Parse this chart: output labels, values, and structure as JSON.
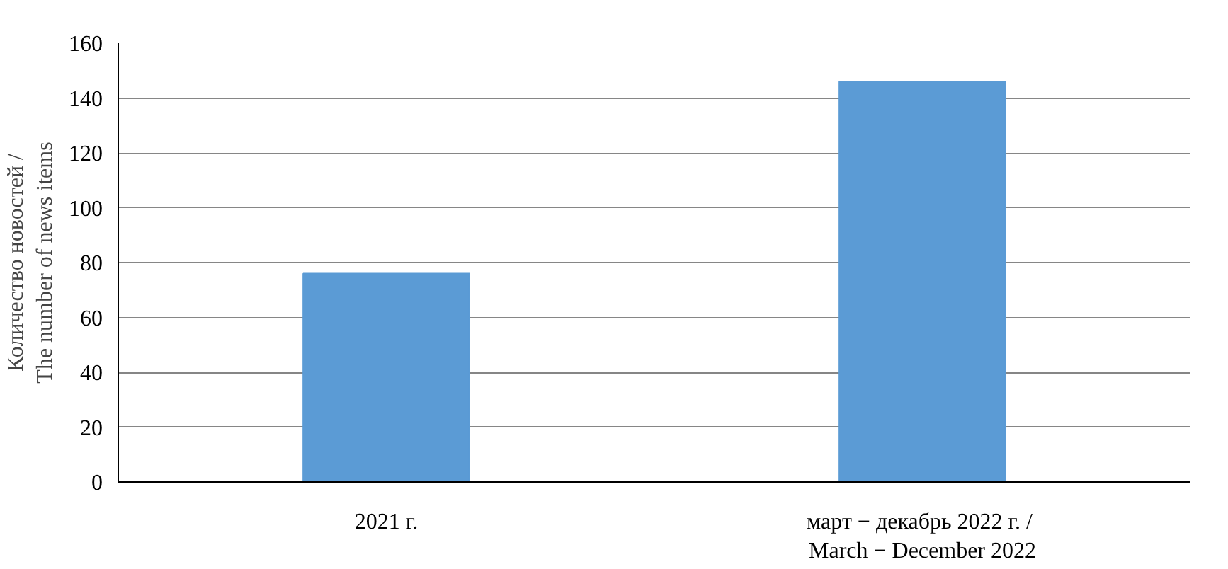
{
  "chart_data": {
    "type": "bar",
    "ylabel": "Количество новостей /\nThe number of news items",
    "categories": [
      "2021 г.",
      "март − декабрь  2022 г. /\nMarch − December 2022"
    ],
    "values": [
      76,
      146
    ],
    "color": "#5b9bd5",
    "ylim": [
      0,
      160
    ],
    "yticks": [
      0,
      20,
      40,
      60,
      80,
      100,
      120,
      140,
      160
    ],
    "grid": "y"
  }
}
